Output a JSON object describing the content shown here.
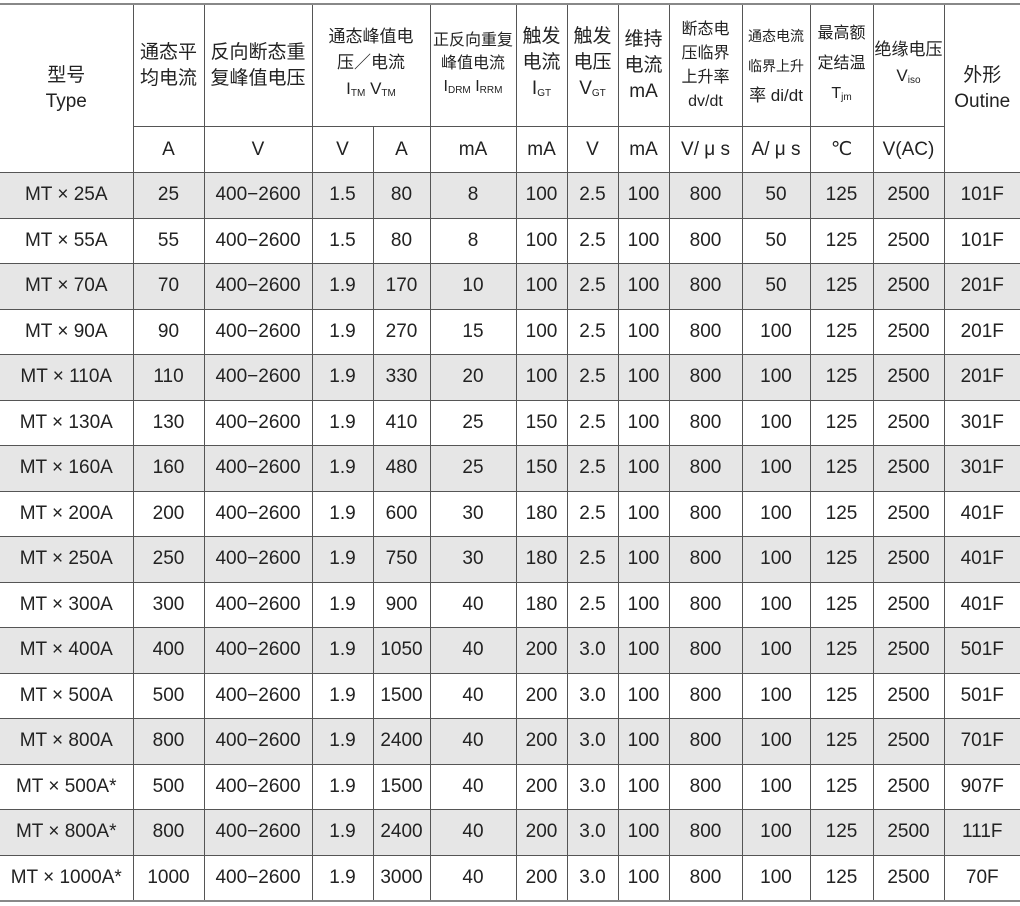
{
  "headers": {
    "type": {
      "zh": "型号",
      "en": "Type"
    },
    "it": "通态平均电流",
    "vrrm": "反向断态重复峰值电压",
    "vtm": {
      "zh": "通态峰值电压／电流",
      "sym1": "I",
      "sub1": "TM",
      "sym2": "V",
      "sub2": "TM"
    },
    "idrm": {
      "zh": "正反向重复峰值电流",
      "sym1": "I",
      "sub1": "DRM",
      "sym2": "I",
      "sub2": "RRM"
    },
    "igt": {
      "zh": "触发电流",
      "sym": "I",
      "sub": "GT"
    },
    "vgt": {
      "zh": "触发电压",
      "sym": "V",
      "sub": "GT"
    },
    "ih": {
      "zh": "维持电流",
      "unit": "mA"
    },
    "dvdt": {
      "zh": "断态电压临界上升率",
      "sym": "dv/dt"
    },
    "didt": {
      "zh": "通态电流临界上升",
      "sym": "率 di/dt"
    },
    "tjm": {
      "zh": "最高额定结温",
      "sym": "T",
      "sub": "jm"
    },
    "viso": {
      "zh": "绝缘电压",
      "sym": "V",
      "sub": "iso"
    },
    "outline": {
      "zh": "外形",
      "en": "Outine"
    }
  },
  "units": [
    "A",
    "V",
    "V",
    "A",
    "mA",
    "mA",
    "V",
    "mA",
    "V/ μ s",
    "A/ μ s",
    "℃",
    "V(AC)"
  ],
  "rows": [
    [
      "MT × 25A",
      "25",
      "400−2600",
      "1.5",
      "80",
      "8",
      "100",
      "2.5",
      "100",
      "800",
      "50",
      "125",
      "2500",
      "101F"
    ],
    [
      "MT × 55A",
      "55",
      "400−2600",
      "1.5",
      "80",
      "8",
      "100",
      "2.5",
      "100",
      "800",
      "50",
      "125",
      "2500",
      "101F"
    ],
    [
      "MT × 70A",
      "70",
      "400−2600",
      "1.9",
      "170",
      "10",
      "100",
      "2.5",
      "100",
      "800",
      "50",
      "125",
      "2500",
      "201F"
    ],
    [
      "MT × 90A",
      "90",
      "400−2600",
      "1.9",
      "270",
      "15",
      "100",
      "2.5",
      "100",
      "800",
      "100",
      "125",
      "2500",
      "201F"
    ],
    [
      "MT × 110A",
      "110",
      "400−2600",
      "1.9",
      "330",
      "20",
      "100",
      "2.5",
      "100",
      "800",
      "100",
      "125",
      "2500",
      "201F"
    ],
    [
      "MT × 130A",
      "130",
      "400−2600",
      "1.9",
      "410",
      "25",
      "150",
      "2.5",
      "100",
      "800",
      "100",
      "125",
      "2500",
      "301F"
    ],
    [
      "MT × 160A",
      "160",
      "400−2600",
      "1.9",
      "480",
      "25",
      "150",
      "2.5",
      "100",
      "800",
      "100",
      "125",
      "2500",
      "301F"
    ],
    [
      "MT × 200A",
      "200",
      "400−2600",
      "1.9",
      "600",
      "30",
      "180",
      "2.5",
      "100",
      "800",
      "100",
      "125",
      "2500",
      "401F"
    ],
    [
      "MT × 250A",
      "250",
      "400−2600",
      "1.9",
      "750",
      "30",
      "180",
      "2.5",
      "100",
      "800",
      "100",
      "125",
      "2500",
      "401F"
    ],
    [
      "MT × 300A",
      "300",
      "400−2600",
      "1.9",
      "900",
      "40",
      "180",
      "2.5",
      "100",
      "800",
      "100",
      "125",
      "2500",
      "401F"
    ],
    [
      "MT × 400A",
      "400",
      "400−2600",
      "1.9",
      "1050",
      "40",
      "200",
      "3.0",
      "100",
      "800",
      "100",
      "125",
      "2500",
      "501F"
    ],
    [
      "MT × 500A",
      "500",
      "400−2600",
      "1.9",
      "1500",
      "40",
      "200",
      "3.0",
      "100",
      "800",
      "100",
      "125",
      "2500",
      "501F"
    ],
    [
      "MT × 800A",
      "800",
      "400−2600",
      "1.9",
      "2400",
      "40",
      "200",
      "3.0",
      "100",
      "800",
      "100",
      "125",
      "2500",
      "701F"
    ],
    [
      "MT × 500A*",
      "500",
      "400−2600",
      "1.9",
      "1500",
      "40",
      "200",
      "3.0",
      "100",
      "800",
      "100",
      "125",
      "2500",
      "907F"
    ],
    [
      "MT × 800A*",
      "800",
      "400−2600",
      "1.9",
      "2400",
      "40",
      "200",
      "3.0",
      "100",
      "800",
      "100",
      "125",
      "2500",
      "111F"
    ],
    [
      "MT × 1000A*",
      "1000",
      "400−2600",
      "1.9",
      "3000",
      "40",
      "200",
      "3.0",
      "100",
      "800",
      "100",
      "125",
      "2500",
      "70F"
    ]
  ]
}
